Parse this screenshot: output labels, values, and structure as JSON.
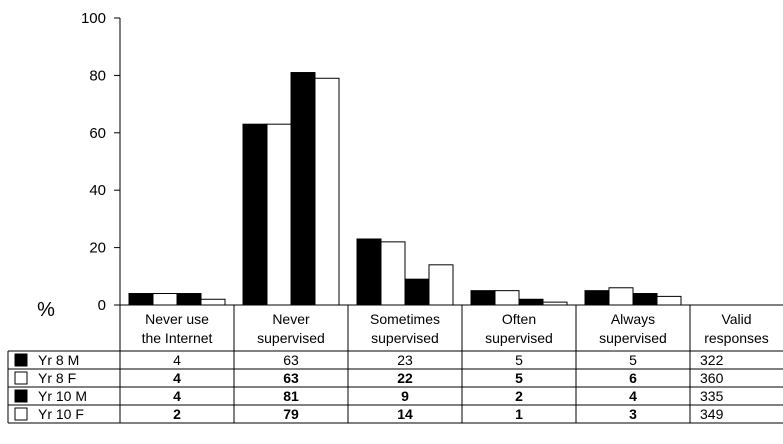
{
  "chart_data": {
    "type": "bar",
    "ylabel": "%",
    "ylim": [
      0,
      100
    ],
    "yticks": [
      "0",
      "20",
      "40",
      "60",
      "80",
      "100"
    ],
    "categories": [
      [
        "Never use",
        "the Internet"
      ],
      [
        "Never",
        "supervised"
      ],
      [
        "Sometimes",
        "supervised"
      ],
      [
        "Often",
        "supervised"
      ],
      [
        "Always",
        "supervised"
      ]
    ],
    "extra_column": [
      "Valid",
      "responses"
    ],
    "series": [
      {
        "name": "Yr 8 M",
        "fill": "#000000",
        "values": [
          4,
          63,
          23,
          5,
          5
        ],
        "table_values": [
          "4",
          "63",
          "23",
          "5",
          "5"
        ],
        "valid": "322"
      },
      {
        "name": "Yr 8 F",
        "fill": "#ffffff",
        "values": [
          4,
          63,
          22,
          5,
          6
        ],
        "table_values": [
          "4",
          "63",
          "22",
          "5",
          "6"
        ],
        "valid": "360"
      },
      {
        "name": "Yr 10 M",
        "fill": "#000000",
        "values": [
          4,
          81,
          9,
          2,
          4
        ],
        "table_values": [
          "4",
          "81",
          "9",
          "2",
          "4"
        ],
        "valid": "335"
      },
      {
        "name": "Yr 10 F",
        "fill": "#ffffff",
        "values": [
          2,
          79,
          14,
          1,
          3
        ],
        "table_values": [
          "2",
          "79",
          "14",
          "1",
          "3"
        ],
        "valid": "349"
      }
    ],
    "grid": false,
    "legend": "table-left"
  }
}
